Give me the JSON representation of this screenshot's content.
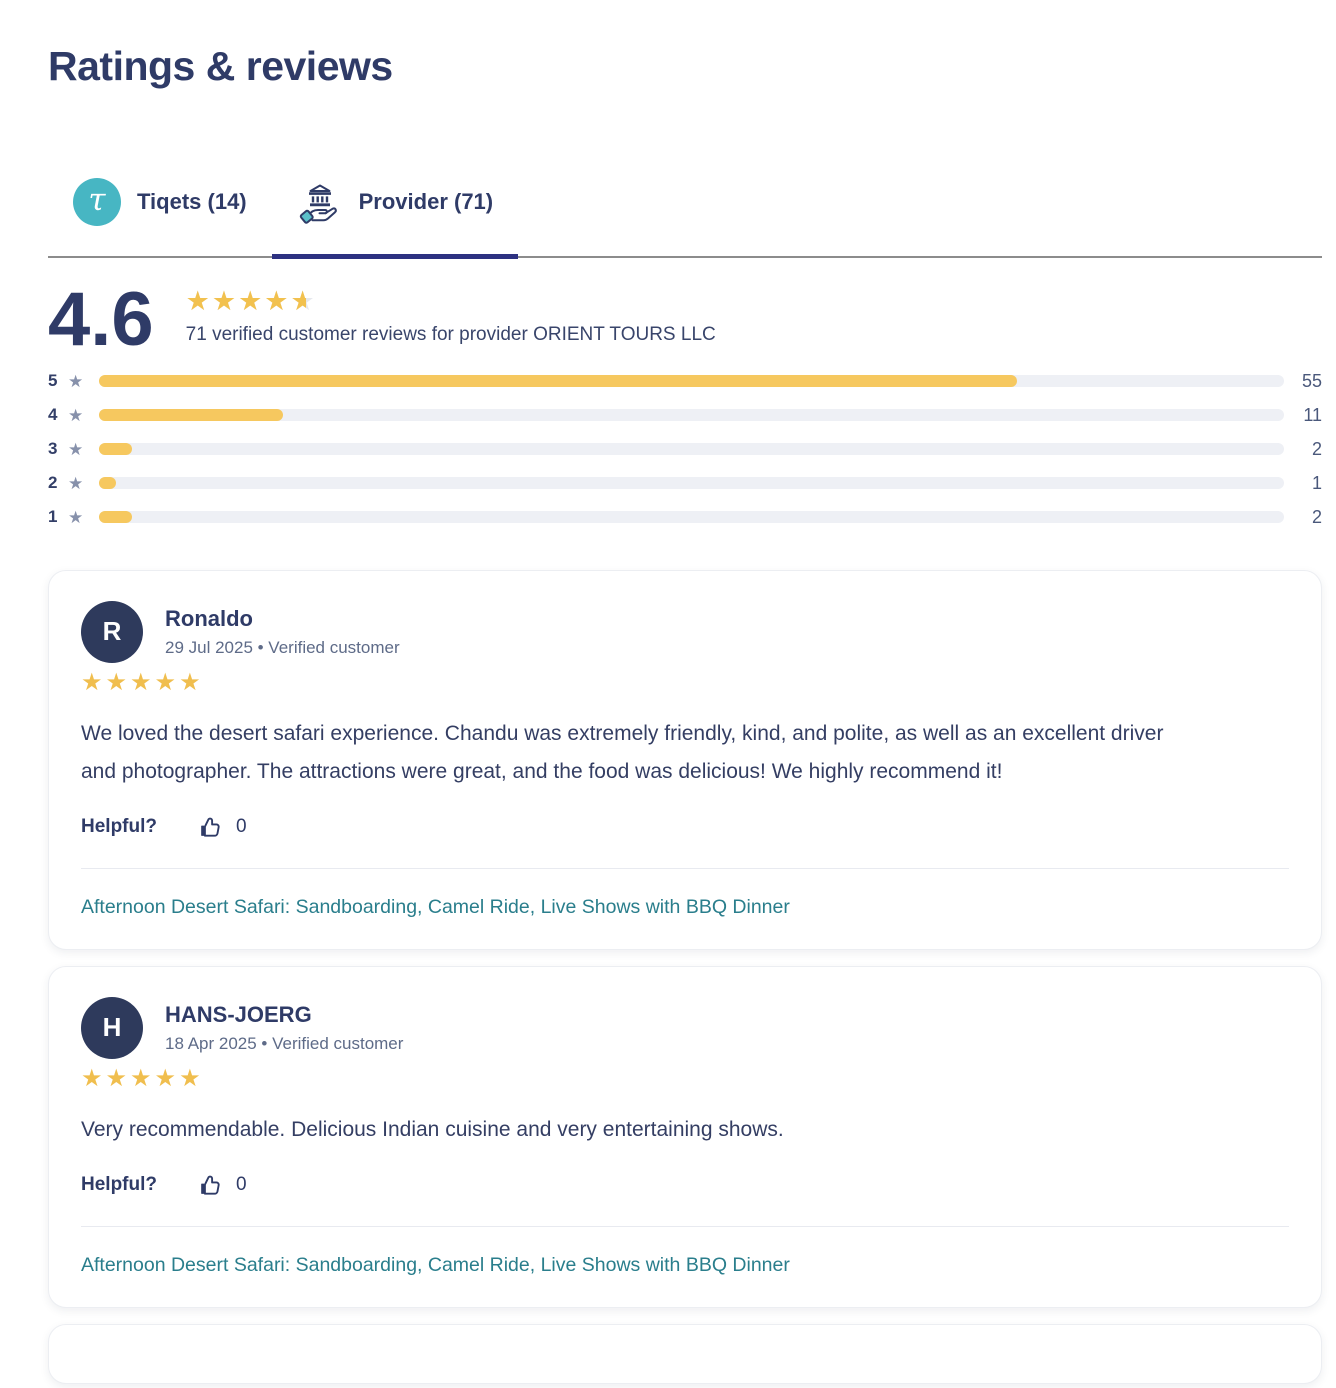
{
  "page": {
    "title": "Ratings & reviews"
  },
  "glyphs": {
    "star": "★",
    "tau": "τ"
  },
  "colors": {
    "navy": "#2F3B67",
    "active_tab_indicator": "#2D3181",
    "tiqets_teal": "#47B6C3",
    "star_yellow": "#F2C14E",
    "bar_yellow": "#F6C85F",
    "bar_track": "#EEF0F5",
    "label_star_gray": "#8791AB",
    "avatar_navy": "#2E3A5C",
    "link_teal": "#2A7E8C"
  },
  "tabs": [
    {
      "label": "Tiqets (14)",
      "icon": "tiqets-logo",
      "active": false
    },
    {
      "label": "Provider (71)",
      "icon": "provider-hand-building-icon",
      "active": true
    }
  ],
  "summary": {
    "score": "4.6",
    "stars_value": 4.6,
    "caption": "71 verified customer reviews for provider ORIENT TOURS LLC"
  },
  "distribution": {
    "total": 71,
    "rows": [
      {
        "stars": 5,
        "count": 55
      },
      {
        "stars": 4,
        "count": 11
      },
      {
        "stars": 3,
        "count": 2
      },
      {
        "stars": 2,
        "count": 1
      },
      {
        "stars": 1,
        "count": 2
      }
    ]
  },
  "reviews": [
    {
      "initial": "R",
      "name": "Ronaldo",
      "meta": "29 Jul 2025 • Verified customer",
      "stars": 5,
      "text": "We loved the desert safari experience. Chandu was extremely friendly, kind, and polite, as well as an excellent driver and photographer. The attractions were great, and the food was delicious! We highly recommend it!",
      "helpful_label": "Helpful?",
      "helpful_count": 0,
      "product": "Afternoon Desert Safari: Sandboarding, Camel Ride, Live Shows with BBQ Dinner"
    },
    {
      "initial": "H",
      "name": "HANS-JOERG",
      "meta": "18 Apr 2025 • Verified customer",
      "stars": 5,
      "text": "Very recommendable. Delicious Indian cuisine and very entertaining shows.",
      "helpful_label": "Helpful?",
      "helpful_count": 0,
      "product": "Afternoon Desert Safari: Sandboarding, Camel Ride, Live Shows with BBQ Dinner"
    }
  ]
}
